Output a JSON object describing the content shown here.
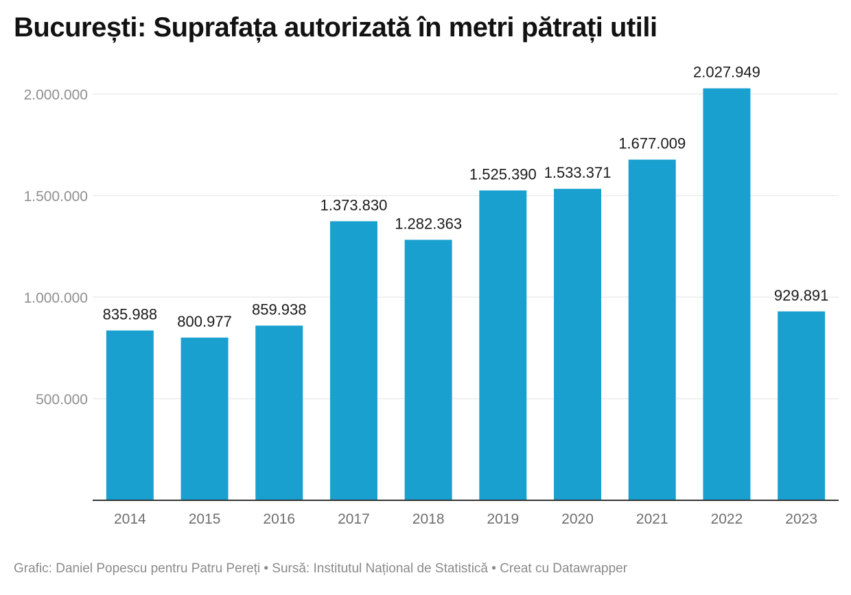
{
  "chart_data": {
    "type": "bar",
    "title": "București: Suprafața autorizată în metri pătrați utili",
    "categories": [
      "2014",
      "2015",
      "2016",
      "2017",
      "2018",
      "2019",
      "2020",
      "2021",
      "2022",
      "2023"
    ],
    "values": [
      835988,
      800977,
      859938,
      1373830,
      1282363,
      1525390,
      1533371,
      1677009,
      2027949,
      929891
    ],
    "value_labels": [
      "835.988",
      "800.977",
      "859.938",
      "1.373.830",
      "1.282.363",
      "1.525.390",
      "1.533.371",
      "1.677.009",
      "2.027.949",
      "929.891"
    ],
    "yticks": [
      500000,
      1000000,
      1500000,
      2000000
    ],
    "ytick_labels": [
      "500.000",
      "1.000.000",
      "1.500.000",
      "2.000.000"
    ],
    "ylim": [
      0,
      2000000
    ],
    "xlabel": "",
    "ylabel": "",
    "grid": true,
    "bar_color": "#1aa0ce"
  },
  "footer": {
    "text": "Grafic: Daniel Popescu pentru Patru Pereți • Sursă: Institutul Național de Statistică • Creat cu Datawrapper"
  }
}
